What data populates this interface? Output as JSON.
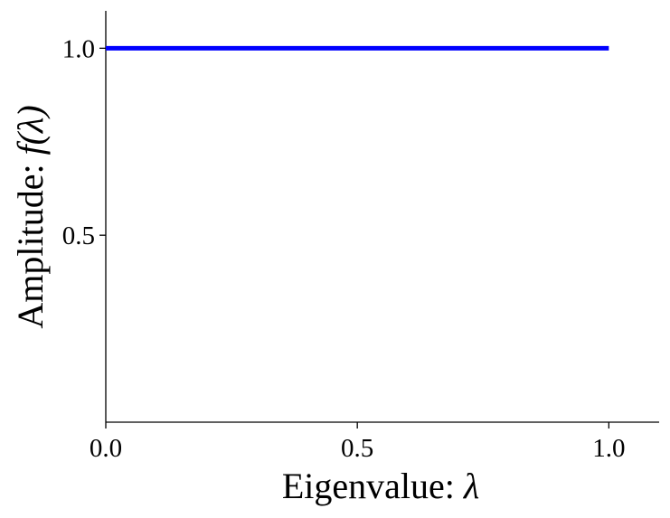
{
  "chart_data": {
    "type": "line",
    "xlabel_text": "Eigenvalue: ",
    "xlabel_symbol": "λ",
    "ylabel_text": "Amplitude: ",
    "ylabel_symbol": "f(λ)",
    "xlim": [
      0.0,
      1.1
    ],
    "ylim": [
      0.0,
      1.1
    ],
    "x_ticks": [
      0.0,
      0.5,
      1.0
    ],
    "x_tick_labels": [
      "0.0",
      "0.5",
      "1.0"
    ],
    "y_ticks": [
      0.5,
      1.0
    ],
    "y_tick_labels": [
      "0.5",
      "1.0"
    ],
    "grid": false,
    "series": [
      {
        "color": "#0000ff",
        "x": [
          0.0,
          1.0
        ],
        "y": [
          1.0,
          1.0
        ]
      }
    ]
  }
}
